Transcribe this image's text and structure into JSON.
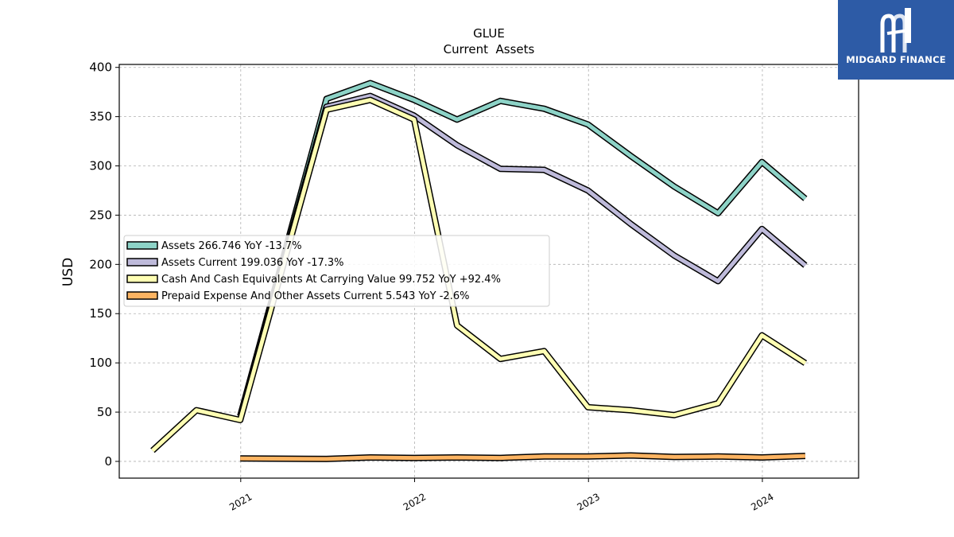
{
  "chart_data": {
    "type": "line",
    "title": "GLUE",
    "subtitle": "Current  Assets",
    "xlabel": "",
    "ylabel": "USD",
    "ylim": [
      -17,
      403
    ],
    "yticks": [
      0,
      50,
      100,
      150,
      200,
      250,
      300,
      350,
      400
    ],
    "xlim": [
      "2020-04-21",
      "2024-07-21"
    ],
    "xticks": [
      "2021-01-01",
      "2022-01-01",
      "2023-01-01",
      "2024-01-01"
    ],
    "xtick_labels": [
      "2021",
      "2022",
      "2023",
      "2024"
    ],
    "grid": true,
    "legend_position": "center-left",
    "series": [
      {
        "name": "Assets",
        "legend": "Assets  266.746 YoY -13.7%",
        "color": "#8dd3c7",
        "points": [
          [
            "2020-12-31",
            46
          ],
          [
            "2021-06-30",
            368
          ],
          [
            "2021-09-30",
            384
          ],
          [
            "2021-12-31",
            367
          ],
          [
            "2022-03-31",
            347
          ],
          [
            "2022-06-30",
            366
          ],
          [
            "2022-09-30",
            358
          ],
          [
            "2022-12-31",
            342
          ],
          [
            "2023-03-31",
            310
          ],
          [
            "2023-06-30",
            279
          ],
          [
            "2023-09-30",
            252
          ],
          [
            "2023-12-31",
            304
          ],
          [
            "2024-03-31",
            266.746
          ]
        ]
      },
      {
        "name": "Assets Current",
        "legend": "Assets Current  199.036 YoY -17.3%",
        "color": "#bebada",
        "points": [
          [
            "2020-12-31",
            46
          ],
          [
            "2021-06-30",
            360
          ],
          [
            "2021-09-30",
            371
          ],
          [
            "2021-12-31",
            351
          ],
          [
            "2022-03-31",
            321
          ],
          [
            "2022-06-30",
            297
          ],
          [
            "2022-09-30",
            296
          ],
          [
            "2022-12-31",
            275
          ],
          [
            "2023-03-31",
            241
          ],
          [
            "2023-06-30",
            209
          ],
          [
            "2023-09-30",
            183
          ],
          [
            "2023-12-31",
            236
          ],
          [
            "2024-03-31",
            199.036
          ]
        ]
      },
      {
        "name": "Cash And Cash Equivalents At Carrying Value",
        "legend": "Cash And Cash Equivalents At Carrying Value  99.752 YoY +92.4%",
        "color": "#ffffb3",
        "points": [
          [
            "2020-06-30",
            11
          ],
          [
            "2020-09-30",
            52
          ],
          [
            "2020-12-31",
            42
          ],
          [
            "2021-06-30",
            357
          ],
          [
            "2021-09-30",
            367
          ],
          [
            "2021-12-31",
            347
          ],
          [
            "2022-03-31",
            138
          ],
          [
            "2022-06-30",
            104
          ],
          [
            "2022-09-30",
            112
          ],
          [
            "2022-12-31",
            55
          ],
          [
            "2023-03-31",
            52
          ],
          [
            "2023-06-30",
            47
          ],
          [
            "2023-09-30",
            59
          ],
          [
            "2023-12-31",
            128
          ],
          [
            "2024-03-31",
            99.752
          ]
        ]
      },
      {
        "name": "Prepaid Expense And Other Assets Current",
        "legend": "Prepaid Expense And Other Assets Current  5.543 YoY -2.6%",
        "color": "#fdb462",
        "points": [
          [
            "2020-12-31",
            3
          ],
          [
            "2021-06-30",
            2.5
          ],
          [
            "2021-09-30",
            4
          ],
          [
            "2021-12-31",
            3.5
          ],
          [
            "2022-03-31",
            4
          ],
          [
            "2022-06-30",
            3.5
          ],
          [
            "2022-09-30",
            5
          ],
          [
            "2022-12-31",
            5
          ],
          [
            "2023-03-31",
            6
          ],
          [
            "2023-06-30",
            4.5
          ],
          [
            "2023-09-30",
            5
          ],
          [
            "2023-12-31",
            4
          ],
          [
            "2024-03-31",
            5.543
          ]
        ]
      }
    ]
  },
  "logo": {
    "text": "MIDGARD FINANCE",
    "color": "#2d5ba6"
  }
}
